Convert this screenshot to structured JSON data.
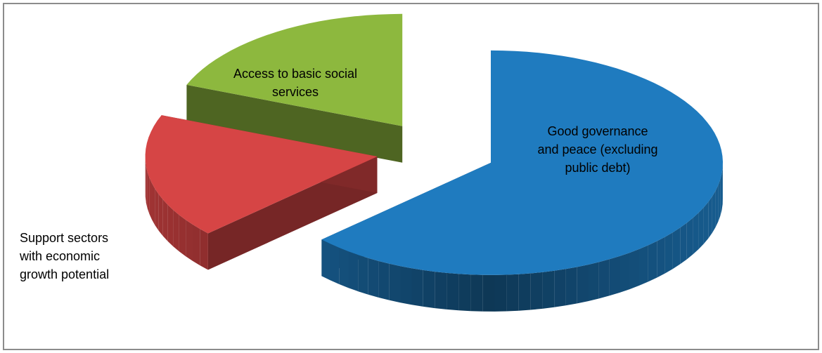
{
  "chart_data": {
    "type": "pie",
    "style": "3d-exploded",
    "slices": [
      {
        "label": "Good governance\nand peace (excluding\npublic debt)",
        "value": 63,
        "color": "#1f7bbf"
      },
      {
        "label": "Support sectors\nwith economic\ngrowth potential",
        "value": 18,
        "color": "#d64545"
      },
      {
        "label": "Access to basic social\nservices",
        "value": 19,
        "color": "#8db83e"
      }
    ],
    "legend": "none"
  }
}
